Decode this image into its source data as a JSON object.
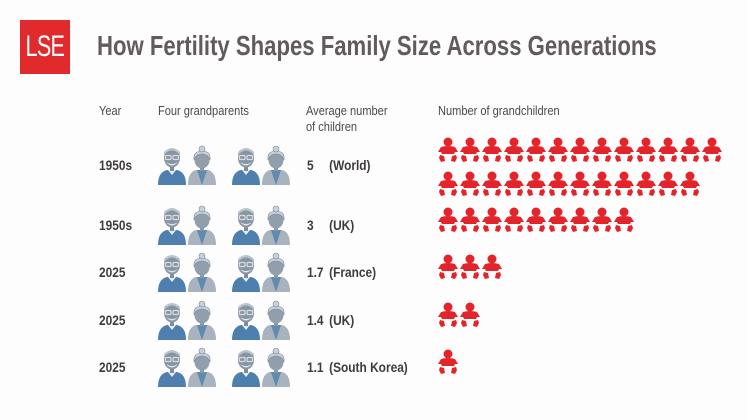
{
  "header": {
    "logo_text": "LSE",
    "title": "How Fertility Shapes Family Size Across Generations"
  },
  "columns": {
    "year": "Year",
    "grandparents": "Four grandparents",
    "avg_children_line1": "Average number",
    "avg_children_line2": "of children",
    "grandchildren": "Number of grandchildren"
  },
  "colors": {
    "brand_red": "#e02a2b",
    "baby_red": "#e3242b",
    "grandpa_blue": "#4f7fae",
    "grandma_gray": "#9aa6b2",
    "title_gray": "#625b5c"
  },
  "icons": {
    "grandparent": "grandparent-icon",
    "grandchild": "baby-icon"
  },
  "rows": [
    {
      "year": "1950s",
      "value": "5",
      "region": "(World)",
      "grandchildren": 25
    },
    {
      "year": "1950s",
      "value": "3",
      "region": "(UK)",
      "grandchildren": 9
    },
    {
      "year": "2025",
      "value": "1.7",
      "region": "(France)",
      "grandchildren": 3
    },
    {
      "year": "2025",
      "value": "1.4",
      "region": "(UK)",
      "grandchildren": 2
    },
    {
      "year": "2025",
      "value": "1.1",
      "region": "(South Korea)",
      "grandchildren": 1
    }
  ],
  "chart_data": {
    "type": "table",
    "title": "How Fertility Shapes Family Size Across Generations",
    "columns": [
      "Year",
      "Four grandparents",
      "Average number of children",
      "Number of grandchildren"
    ],
    "categories": [
      "1950s (World)",
      "1950s (UK)",
      "2025 (France)",
      "2025 (UK)",
      "2025 (South Korea)"
    ],
    "series": [
      {
        "name": "Average number of children",
        "values": [
          5,
          3,
          1.7,
          1.4,
          1.1
        ]
      },
      {
        "name": "Number of grandchildren (icons)",
        "values": [
          25,
          9,
          3,
          2,
          1
        ]
      },
      {
        "name": "Grandparents",
        "values": [
          4,
          4,
          4,
          4,
          4
        ]
      }
    ]
  }
}
